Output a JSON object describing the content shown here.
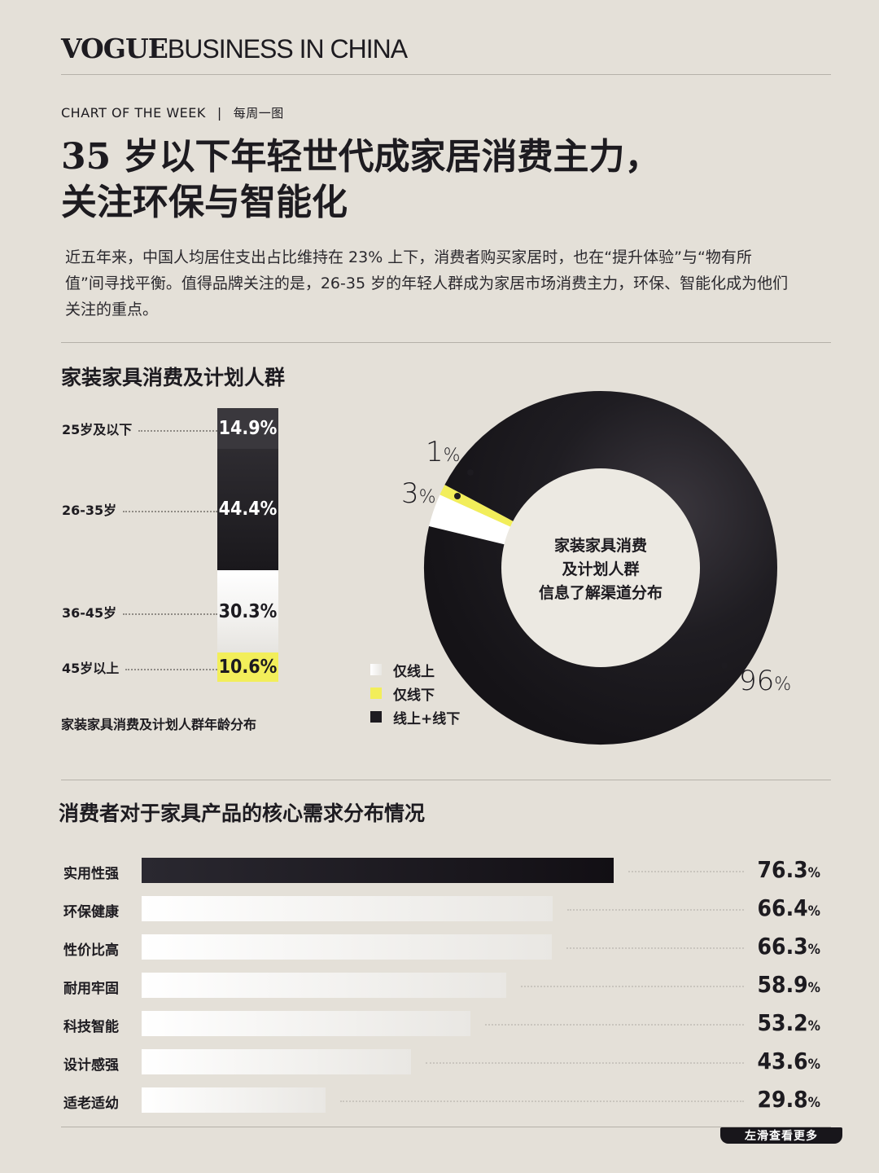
{
  "brand": {
    "vogue": "VOGUE",
    "rest": "BUSINESS IN CHINA"
  },
  "kicker": {
    "en": "CHART OF THE WEEK",
    "sep": "|",
    "cn": "每周一图"
  },
  "headline": {
    "line1": "35 岁以下年轻世代成家居消费主力，",
    "line2": "关注环保与智能化"
  },
  "intro": "近五年来，中国人均居住支出占比维持在 23% 上下，消费者购买家居时，也在“提升体验”与“物有所值”间寻找平衡。值得品牌关注的是，26-35 岁的年轻人群成为家居市场消费主力，环保、智能化成为他们关注的重点。",
  "section1": {
    "title": "家装家具消费及计划人群"
  },
  "footer": {
    "swipe": "左滑查看更多"
  },
  "colors": {
    "background": "#e4e0d8",
    "dark": "#1d1b20",
    "yellow": "#f2ee5a",
    "white": "#ffffff"
  },
  "chart_data": [
    {
      "type": "bar",
      "stacked": true,
      "title": "家装家具消费及计划人群年龄分布",
      "categories": [
        "25岁及以下",
        "26-35岁",
        "36-45岁",
        "45岁以上"
      ],
      "values": [
        14.9,
        44.4,
        30.3,
        10.6
      ],
      "labels": [
        "14.9%",
        "44.4%",
        "30.3%",
        "10.6%"
      ],
      "segment_colors": [
        "#1d1b20",
        "#1d1b20",
        "#ffffff",
        "#f2ee5a"
      ]
    },
    {
      "type": "pie",
      "donut": true,
      "title": "家装家具消费及计划人群信息了解渠道分布",
      "center_lines": [
        "家装家具消费",
        "及计划人群",
        "信息了解渠道分布"
      ],
      "categories": [
        "仅线上",
        "仅线下",
        "线上+线下"
      ],
      "values": [
        3,
        1,
        96
      ],
      "colors": [
        "#ffffff",
        "#f2ee5a",
        "#1d1b20"
      ],
      "legend": "bottom-left"
    },
    {
      "type": "bar",
      "orientation": "horizontal",
      "title": "消费者对于家具产品的核心需求分布情况",
      "categories": [
        "实用性强",
        "环保健康",
        "性价比高",
        "耐用牢固",
        "科技智能",
        "设计感强",
        "适老适幼"
      ],
      "values": [
        76.3,
        66.4,
        66.3,
        58.9,
        53.2,
        43.6,
        29.8
      ],
      "value_labels": [
        "76.3",
        "66.4",
        "66.3",
        "58.9",
        "53.2",
        "43.6",
        "29.8"
      ],
      "unit": "%"
    }
  ]
}
